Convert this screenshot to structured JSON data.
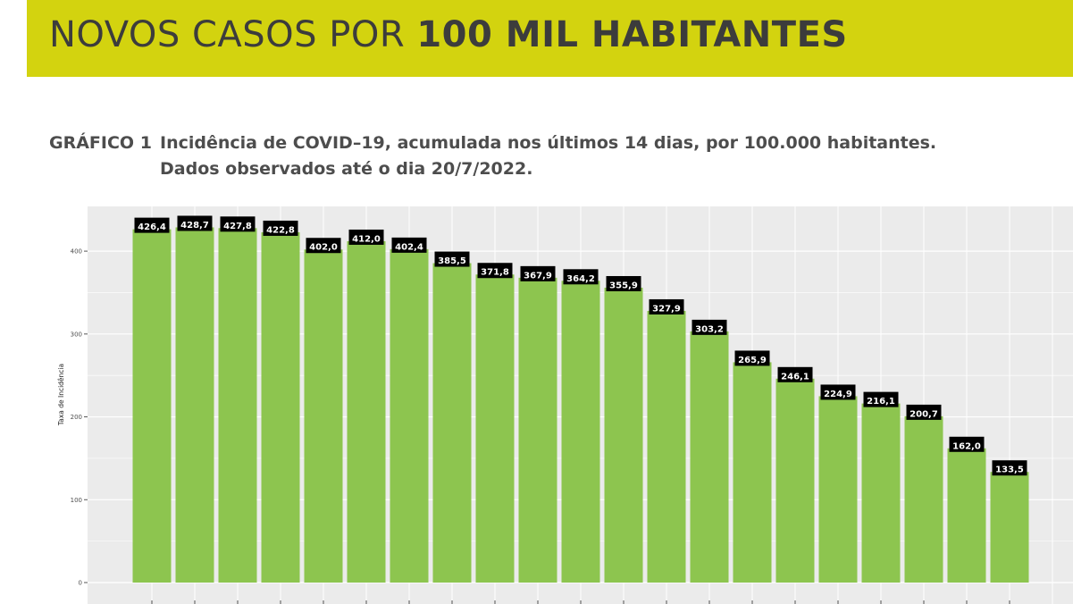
{
  "banner": {
    "title_light": "NOVOS CASOS POR",
    "title_bold": "100 MIL HABITANTES"
  },
  "caption": {
    "label": "GRÁFICO 1",
    "line1": "Incidência de COVID–19, acumulada nos últimos 14 dias, por 100.000 habitantes.",
    "line2": "Dados observados até o dia 20/7/2022."
  },
  "colors": {
    "banner": "#d3d30f",
    "bar": "#8dc54f",
    "panel": "#ebebeb",
    "grid": "#ffffff",
    "label_bg": "#000000",
    "label_text": "#ffffff"
  },
  "chart_data": {
    "type": "bar",
    "ylabel": "Taxa de Incidência",
    "ylim": [
      0,
      440
    ],
    "y_ticks": [
      0,
      100,
      200,
      300,
      400
    ],
    "grid": true,
    "values": [
      426.4,
      428.7,
      427.8,
      422.8,
      402.0,
      412.0,
      402.4,
      385.5,
      371.8,
      367.9,
      364.2,
      355.9,
      327.9,
      303.2,
      265.9,
      246.1,
      224.9,
      216.1,
      200.7,
      162.0,
      133.5
    ],
    "labels": [
      "426,4",
      "428,7",
      "427,8",
      "422,8",
      "402,0",
      "412,0",
      "402,4",
      "385,5",
      "371,8",
      "367,9",
      "364,2",
      "355,9",
      "327,9",
      "303,2",
      "265,9",
      "246,1",
      "224,9",
      "216,1",
      "200,7",
      "162,0",
      "133,5"
    ]
  }
}
